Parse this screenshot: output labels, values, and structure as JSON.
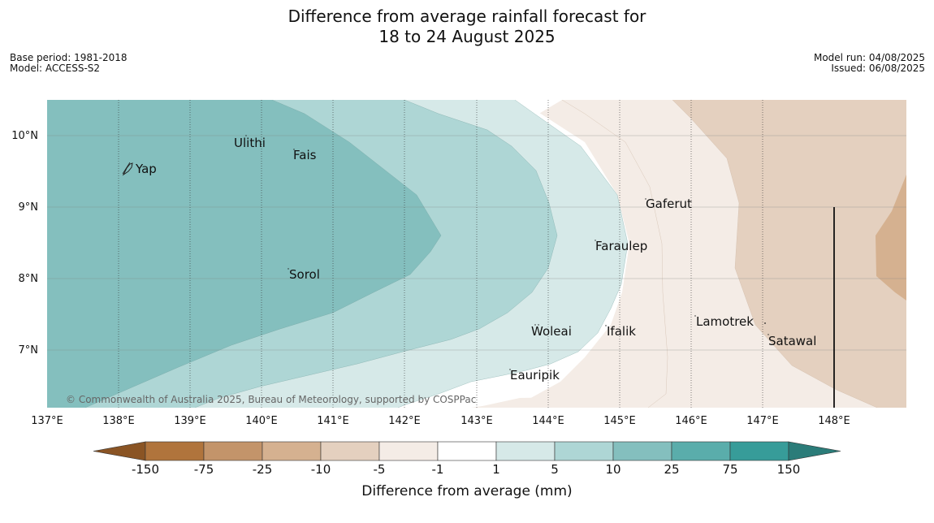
{
  "header": {
    "title_line1": "Difference from average rainfall forecast for",
    "title_line2": "18 to 24 August 2025",
    "base_period": "Base period: 1981-2018",
    "model": "Model: ACCESS-S2",
    "model_run": "Model run: 04/08/2025",
    "issued": "Issued: 06/08/2025"
  },
  "map": {
    "lat_labels": [
      "10°N",
      "9°N",
      "8°N",
      "7°N"
    ],
    "lon_labels": [
      "137°E",
      "138°E",
      "139°E",
      "140°E",
      "141°E",
      "142°E",
      "143°E",
      "144°E",
      "145°E",
      "146°E",
      "147°E",
      "148°E"
    ],
    "places": [
      "Yap",
      "Ulithi",
      "Fais",
      "Sorol",
      "Gaferut",
      "Faraulep",
      "Woleai",
      "Ifalik",
      "Lamotrek",
      "Satawal",
      "Eauripik"
    ],
    "copyright": "© Commonwealth of Australia 2025, Bureau of Meteorology, supported by COSPPac"
  },
  "legend": {
    "title": "Difference from average (mm)",
    "tick_labels": [
      "-150",
      "-75",
      "-25",
      "-10",
      "-5",
      "-1",
      "1",
      "5",
      "10",
      "25",
      "75",
      "150"
    ],
    "colors": [
      "#8a5424",
      "#b0743c",
      "#c3946a",
      "#d5b190",
      "#e4d0bf",
      "#f4ece6",
      "#ffffff",
      "#d6e9e8",
      "#aed6d5",
      "#84bfbe",
      "#5aadab",
      "#379c99",
      "#2b7c79"
    ]
  }
}
